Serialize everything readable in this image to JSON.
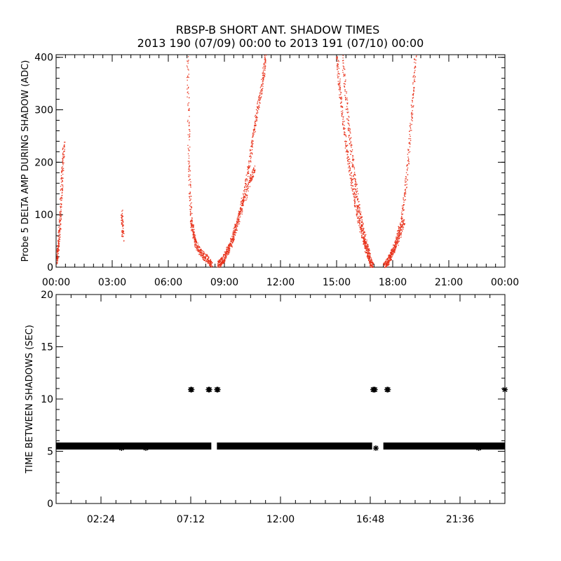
{
  "title_line1": "RBSP-B SHORT ANT. SHADOW TIMES",
  "title_line2": "2013 190 (07/09) 00:00 to 2013 191 (07/10) 00:00",
  "chart_data": [
    {
      "type": "scatter",
      "ylabel": "Probe 5 DELTA AMP DURING SHADOW (ADC)",
      "x_unit": "hours of day",
      "xlim": [
        0,
        24
      ],
      "ylim": [
        0,
        405
      ],
      "x_ticks": [
        0,
        3,
        6,
        9,
        12,
        15,
        18,
        21,
        24
      ],
      "x_tick_labels": [
        "00:00",
        "03:00",
        "06:00",
        "09:00",
        "12:00",
        "15:00",
        "18:00",
        "21:00",
        "00:00"
      ],
      "y_ticks": [
        0,
        100,
        200,
        300,
        400
      ],
      "y_tick_labels": [
        "0",
        "100",
        "200",
        "300",
        "400"
      ],
      "marker_color": "#e8331c",
      "marker": "dot",
      "series": [
        {
          "x": [
            0.0,
            0.1,
            0.2,
            0.3,
            0.4
          ],
          "y": [
            10,
            40,
            90,
            170,
            240
          ]
        },
        {
          "x": [
            3.5,
            3.55
          ],
          "y": [
            105,
            55
          ]
        },
        {
          "x": [
            7.0,
            7.1,
            7.2,
            7.35,
            7.5,
            7.8,
            8.1,
            8.3
          ],
          "y": [
            400,
            200,
            90,
            60,
            40,
            25,
            15,
            5
          ]
        },
        {
          "x": [
            8.6,
            8.9,
            9.3,
            9.7,
            10.1,
            10.4,
            10.7,
            11.0,
            11.2
          ],
          "y": [
            5,
            15,
            40,
            90,
            150,
            220,
            290,
            350,
            405
          ]
        },
        {
          "x": [
            8.7,
            9.0,
            9.4,
            9.8,
            10.3,
            10.6
          ],
          "y": [
            5,
            20,
            55,
            100,
            160,
            190
          ]
        },
        {
          "x": [
            15.0,
            15.2,
            15.5,
            15.8,
            16.1,
            16.4,
            16.6,
            16.8,
            16.9
          ],
          "y": [
            405,
            320,
            230,
            160,
            100,
            55,
            30,
            10,
            2
          ]
        },
        {
          "x": [
            15.3,
            15.6,
            15.9,
            16.2,
            16.5,
            16.8
          ],
          "y": [
            400,
            280,
            180,
            110,
            55,
            15
          ]
        },
        {
          "x": [
            17.5,
            17.8,
            18.1,
            18.4,
            18.7,
            19.0,
            19.2
          ],
          "y": [
            2,
            15,
            40,
            80,
            160,
            290,
            405
          ]
        },
        {
          "x": [
            17.6,
            17.9,
            18.3,
            18.6
          ],
          "y": [
            5,
            25,
            55,
            90
          ]
        }
      ]
    },
    {
      "type": "scatter",
      "ylabel": "TIME BETWEEN SHADOWS (SEC)",
      "x_unit": "hours of day",
      "xlim": [
        0,
        24
      ],
      "ylim": [
        0,
        20
      ],
      "x_ticks": [
        2.4,
        7.2,
        12.0,
        16.8,
        21.6
      ],
      "x_tick_labels": [
        "02:24",
        "07:12",
        "12:00",
        "16:48",
        "21:36"
      ],
      "y_ticks": [
        0,
        5,
        10,
        15,
        20
      ],
      "y_tick_labels": [
        "0",
        "5",
        "10",
        "15",
        "20"
      ],
      "marker_color": "#000000",
      "marker": "asterisk",
      "band": {
        "value": 5.5,
        "segments": [
          [
            0.0,
            8.3
          ],
          [
            8.6,
            16.9
          ],
          [
            17.5,
            24.0
          ]
        ]
      },
      "points": {
        "x": [
          3.5,
          4.8,
          7.2,
          7.25,
          8.15,
          8.2,
          8.6,
          8.65,
          15.9,
          16.95,
          17.0,
          17.05,
          17.1,
          17.7,
          17.75,
          22.6,
          24.0
        ],
        "y": [
          5.3,
          5.3,
          10.9,
          10.9,
          10.9,
          10.9,
          10.9,
          10.9,
          5.5,
          10.9,
          10.9,
          10.9,
          5.3,
          10.9,
          10.9,
          5.3,
          10.9
        ]
      }
    }
  ]
}
